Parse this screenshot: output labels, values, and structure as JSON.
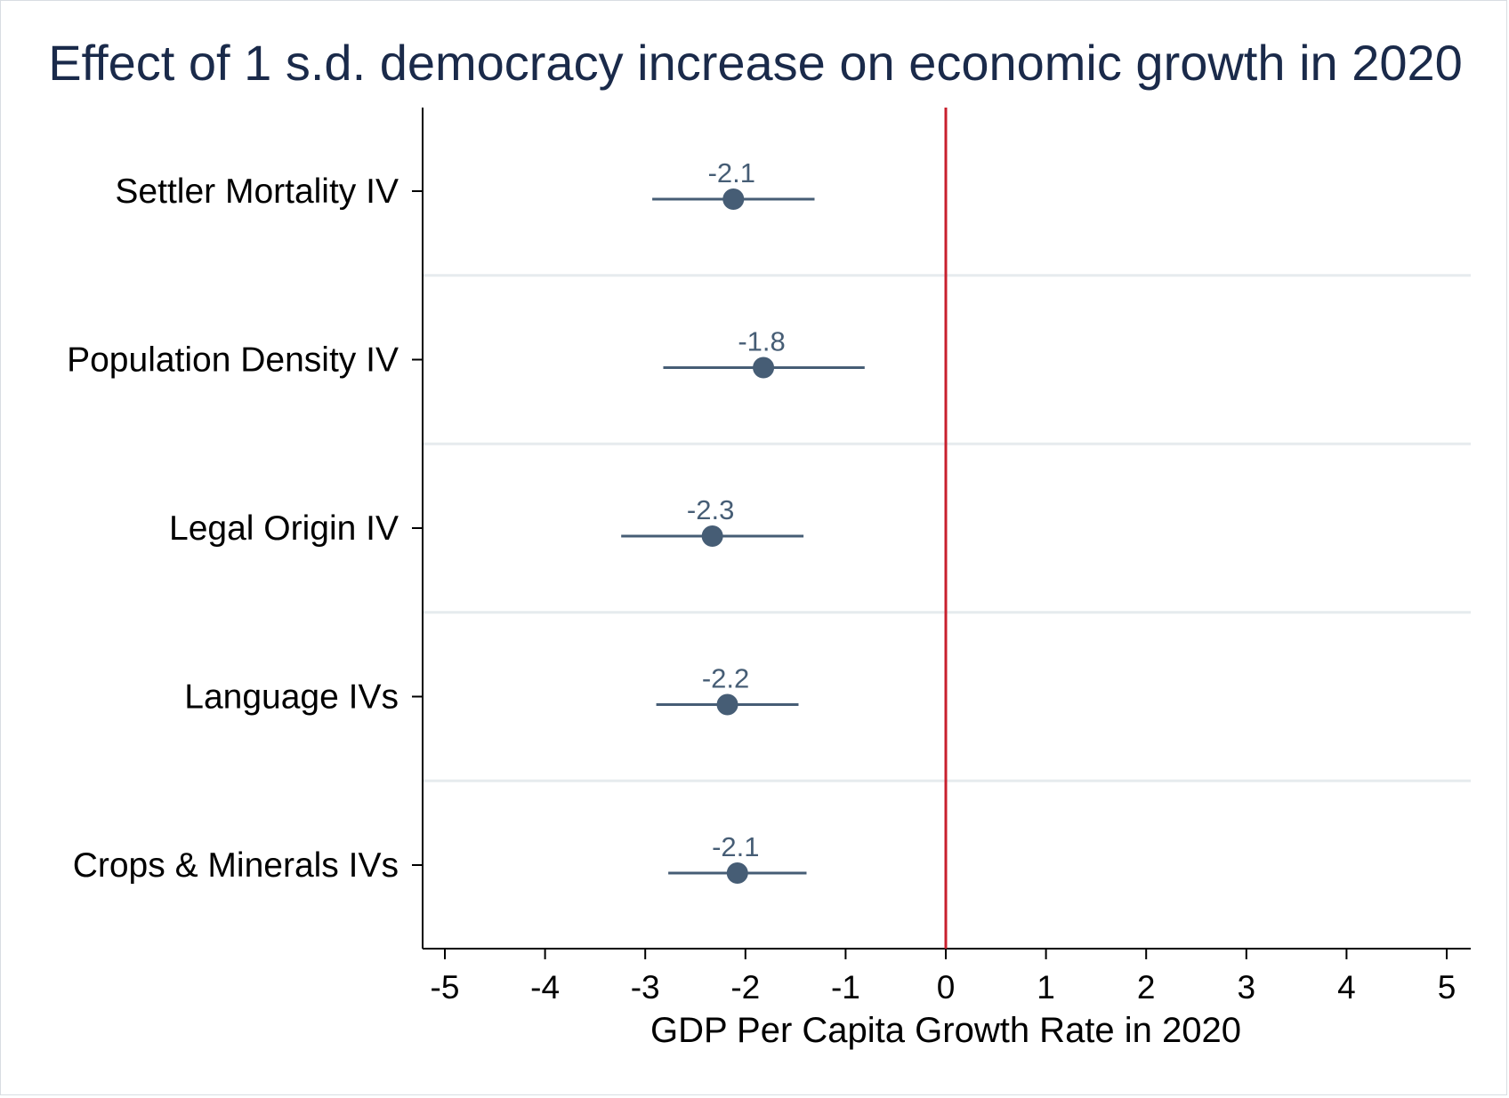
{
  "chart_data": {
    "type": "scatter",
    "title": "Effect of 1 s.d. democracy increase on economic growth in 2020",
    "xlabel": "GDP Per Capita Growth Rate in 2020",
    "ylabel": "",
    "xlim": [
      -5,
      5
    ],
    "xticks": [
      "-5",
      "-4",
      "-3",
      "-2",
      "-1",
      "0",
      "1",
      "2",
      "3",
      "4",
      "5"
    ],
    "reference_line_x": 0,
    "categories": [
      "Settler Mortality IV",
      "Population Density IV",
      "Legal Origin IV",
      "Language IVs",
      "Crops & Minerals IVs"
    ],
    "estimates": [
      -2.1,
      -1.8,
      -2.3,
      -2.2,
      -2.1
    ],
    "point_x": [
      -2.12,
      -1.82,
      -2.33,
      -2.18,
      -2.08
    ],
    "ci_low": [
      -2.93,
      -2.82,
      -3.24,
      -2.89,
      -2.77
    ],
    "ci_high": [
      -1.31,
      -0.81,
      -1.42,
      -1.47,
      -1.39
    ],
    "data_labels": [
      "-2.1",
      "-1.8",
      "-2.3",
      "-2.2",
      "-2.1"
    ],
    "grid": "horizontal separators between categories",
    "legend": "none",
    "colors": {
      "point": "#465d75",
      "ci": "#465d75",
      "reference_line": "#c8202e",
      "title": "#1a2a4a",
      "separator": "#e6ebee"
    }
  }
}
